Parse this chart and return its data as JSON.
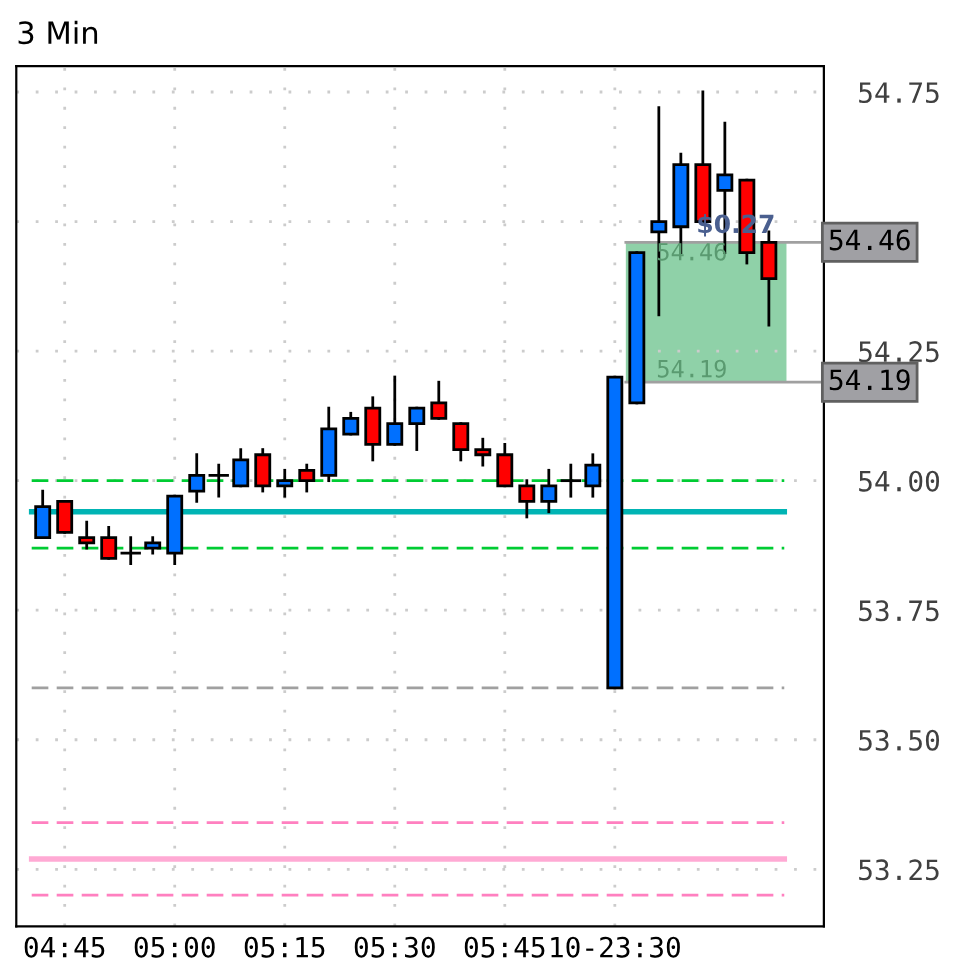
{
  "chart_data": {
    "type": "candlestick",
    "title": "3 Min",
    "categories": [
      null,
      "04:45",
      null,
      null,
      null,
      null,
      "05:00",
      null,
      null,
      null,
      null,
      "05:15",
      null,
      null,
      null,
      null,
      "05:30",
      null,
      null,
      null,
      null,
      "05:45",
      null,
      null,
      null,
      null,
      "10-23:30",
      null,
      null,
      null,
      null,
      null,
      null,
      null
    ],
    "ohlc": [
      [
        53.89,
        53.98,
        53.89,
        53.95
      ],
      [
        53.96,
        53.96,
        53.9,
        53.9
      ],
      [
        53.89,
        53.92,
        53.87,
        53.88
      ],
      [
        53.89,
        53.91,
        53.85,
        53.85
      ],
      [
        53.86,
        53.89,
        53.84,
        53.86
      ],
      [
        53.87,
        53.89,
        53.86,
        53.88
      ],
      [
        53.86,
        53.97,
        53.84,
        53.97
      ],
      [
        53.98,
        54.05,
        53.96,
        54.01
      ],
      [
        54.01,
        54.03,
        53.97,
        54.01
      ],
      [
        53.99,
        54.06,
        53.99,
        54.04
      ],
      [
        54.05,
        54.06,
        53.98,
        53.99
      ],
      [
        53.99,
        54.02,
        53.97,
        54.0
      ],
      [
        54.02,
        54.03,
        53.98,
        54.0
      ],
      [
        54.01,
        54.14,
        54.0,
        54.1
      ],
      [
        54.09,
        54.13,
        54.09,
        54.12
      ],
      [
        54.14,
        54.16,
        54.04,
        54.07
      ],
      [
        54.07,
        54.2,
        54.07,
        54.11
      ],
      [
        54.11,
        54.14,
        54.06,
        54.14
      ],
      [
        54.15,
        54.19,
        54.12,
        54.12
      ],
      [
        54.11,
        54.11,
        54.04,
        54.06
      ],
      [
        54.06,
        54.08,
        54.03,
        54.05
      ],
      [
        54.05,
        54.07,
        53.99,
        53.99
      ],
      [
        53.99,
        54.0,
        53.93,
        53.96
      ],
      [
        53.96,
        54.02,
        53.94,
        53.99
      ],
      [
        54.0,
        54.03,
        53.97,
        54.0
      ],
      [
        53.99,
        54.05,
        53.97,
        54.03
      ],
      [
        53.6,
        54.2,
        53.6,
        54.2
      ],
      [
        54.15,
        54.44,
        54.15,
        54.44
      ],
      [
        54.48,
        54.72,
        54.32,
        54.5
      ],
      [
        54.49,
        54.63,
        54.44,
        54.61
      ],
      [
        54.61,
        54.75,
        54.5,
        54.5
      ],
      [
        54.56,
        54.69,
        54.44,
        54.59
      ],
      [
        54.58,
        54.58,
        54.42,
        54.44
      ],
      [
        54.46,
        54.48,
        54.3,
        54.39
      ]
    ],
    "colors": [
      "#0070ff",
      "#ff0000",
      "#ff0000",
      "#ff0000",
      "#000000",
      "#0070ff",
      "#0070ff",
      "#0070ff",
      "#000000",
      "#0070ff",
      "#ff0000",
      "#0070ff",
      "#ff0000",
      "#0070ff",
      "#0070ff",
      "#ff0000",
      "#0070ff",
      "#0070ff",
      "#ff0000",
      "#ff0000",
      "#ff0000",
      "#ff0000",
      "#ff0000",
      "#0070ff",
      "#000000",
      "#0070ff",
      "#0070ff",
      "#0070ff",
      "#0070ff",
      "#0070ff",
      "#ff0000",
      "#0070ff",
      "#ff0000",
      "#ff0000"
    ],
    "ylim": [
      53.14,
      54.8
    ],
    "yticks": [
      53.25,
      {
        "value": 53.5,
        "label": "53.50"
      },
      53.75,
      {
        "value": 54.0,
        "label": "54.00"
      },
      54.25,
      {
        "value": 54.5,
        "label": null
      },
      54.75
    ],
    "grid": true,
    "ref_lines": [
      {
        "axis": "y",
        "value": 54.0,
        "color": "#00cc33",
        "line_style": "dashed"
      },
      {
        "axis": "y",
        "value": 53.87,
        "color": "#00cc33",
        "line_style": "dashed"
      },
      {
        "axis": "y",
        "value": 53.94,
        "color": "#00b4b4",
        "line_style": "solid"
      },
      {
        "axis": "y",
        "value": 53.6,
        "color": "#a0a0a0",
        "line_style": "dashed"
      },
      {
        "axis": "y",
        "value": 53.34,
        "color": "#ff80c0",
        "line_style": "dashed"
      },
      {
        "axis": "y",
        "value": 53.27,
        "color": "#ffaad4",
        "line_style": "solid"
      },
      {
        "axis": "y",
        "value": 53.2,
        "color": "#ff80c0",
        "line_style": "dashed"
      },
      {
        "axis": "y",
        "value": 54.46,
        "label": "54.46",
        "color": "#a0a0a0",
        "line_style": "solid"
      },
      {
        "axis": "y",
        "value": 54.19,
        "label": "54.19",
        "color": "#a0a0a0",
        "line_style": "solid"
      }
    ],
    "bands": [
      {
        "axis": "y",
        "from": 54.19,
        "to": 54.46,
        "label": "$0.27",
        "color": "#8fd1a8"
      }
    ],
    "annotations": [
      {
        "text": "54.46",
        "y": 54.46
      },
      {
        "text": "54.19",
        "y": 54.19
      }
    ]
  }
}
